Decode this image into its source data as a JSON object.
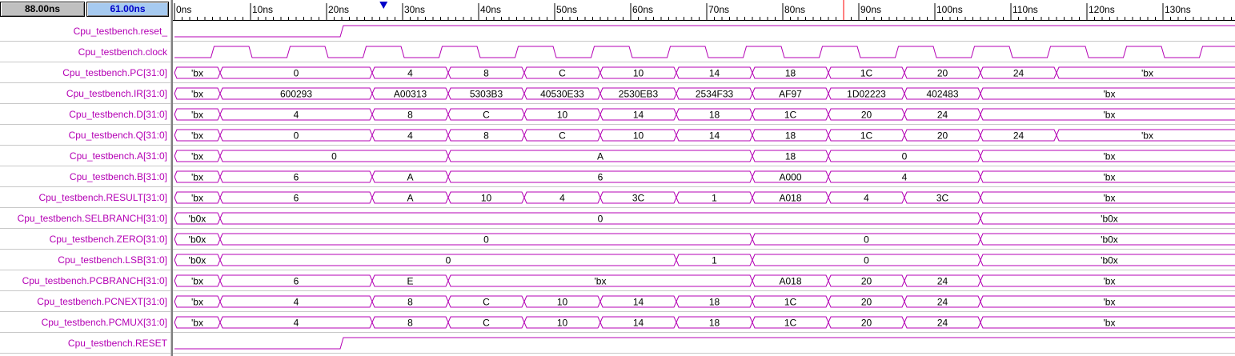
{
  "timebar": {
    "time_a": "88.00ns",
    "time_b": "61.00ns"
  },
  "ruler": {
    "labels": [
      "0ns",
      "10ns",
      "20ns",
      "30ns",
      "40ns",
      "50ns",
      "60ns",
      "70ns",
      "80ns",
      "90ns",
      "100ns",
      "110ns",
      "120ns",
      "130ns"
    ],
    "marker_ns": 27.5,
    "cursor_ns": 88
  },
  "colors": {
    "signal": "#b400b4",
    "ruler": "#000000",
    "marker": "#0000c8",
    "cursor": "#ff0000",
    "time_a_bg": "#c0c0c0",
    "time_b_bg": "#a6caf0"
  },
  "signals": [
    {
      "name": "Cpu_testbench.reset_",
      "kind": "bit",
      "edges": [
        [
          0,
          0
        ],
        [
          22,
          1
        ]
      ]
    },
    {
      "name": "Cpu_testbench.clock",
      "kind": "clock",
      "period": 10,
      "first_rise": 5
    },
    {
      "name": "Cpu_testbench.PC[31:0]",
      "kind": "bus",
      "segments": [
        [
          0,
          6,
          "'bx"
        ],
        [
          6,
          26,
          "0"
        ],
        [
          26,
          36,
          "4"
        ],
        [
          36,
          46,
          "8"
        ],
        [
          46,
          56,
          "C"
        ],
        [
          56,
          66,
          "10"
        ],
        [
          66,
          76,
          "14"
        ],
        [
          76,
          86,
          "18"
        ],
        [
          86,
          96,
          "1C"
        ],
        [
          96,
          106,
          "20"
        ],
        [
          106,
          116,
          "24"
        ],
        [
          116,
          140,
          "'bx"
        ]
      ]
    },
    {
      "name": "Cpu_testbench.IR[31:0]",
      "kind": "bus",
      "segments": [
        [
          0,
          6,
          "'bx"
        ],
        [
          6,
          26,
          "600293"
        ],
        [
          26,
          36,
          "A00313"
        ],
        [
          36,
          46,
          "5303B3"
        ],
        [
          46,
          56,
          "40530E33"
        ],
        [
          56,
          66,
          "2530EB3"
        ],
        [
          66,
          76,
          "2534F33"
        ],
        [
          76,
          86,
          "AF97"
        ],
        [
          86,
          96,
          "1D02223"
        ],
        [
          96,
          106,
          "402483"
        ],
        [
          106,
          140,
          "'bx"
        ]
      ]
    },
    {
      "name": "Cpu_testbench.D[31:0]",
      "kind": "bus",
      "segments": [
        [
          0,
          6,
          "'bx"
        ],
        [
          6,
          26,
          "4"
        ],
        [
          26,
          36,
          "8"
        ],
        [
          36,
          46,
          "C"
        ],
        [
          46,
          56,
          "10"
        ],
        [
          56,
          66,
          "14"
        ],
        [
          66,
          76,
          "18"
        ],
        [
          76,
          86,
          "1C"
        ],
        [
          86,
          96,
          "20"
        ],
        [
          96,
          106,
          "24"
        ],
        [
          106,
          140,
          "'bx"
        ]
      ]
    },
    {
      "name": "Cpu_testbench.Q[31:0]",
      "kind": "bus",
      "segments": [
        [
          0,
          6,
          "'bx"
        ],
        [
          6,
          26,
          "0"
        ],
        [
          26,
          36,
          "4"
        ],
        [
          36,
          46,
          "8"
        ],
        [
          46,
          56,
          "C"
        ],
        [
          56,
          66,
          "10"
        ],
        [
          66,
          76,
          "14"
        ],
        [
          76,
          86,
          "18"
        ],
        [
          86,
          96,
          "1C"
        ],
        [
          96,
          106,
          "20"
        ],
        [
          106,
          116,
          "24"
        ],
        [
          116,
          140,
          "'bx"
        ]
      ]
    },
    {
      "name": "Cpu_testbench.A[31:0]",
      "kind": "bus",
      "segments": [
        [
          0,
          6,
          "'bx"
        ],
        [
          6,
          36,
          "0"
        ],
        [
          36,
          76,
          "A"
        ],
        [
          76,
          86,
          "18"
        ],
        [
          86,
          106,
          "0"
        ],
        [
          106,
          140,
          "'bx"
        ]
      ]
    },
    {
      "name": "Cpu_testbench.B[31:0]",
      "kind": "bus",
      "segments": [
        [
          0,
          6,
          "'bx"
        ],
        [
          6,
          26,
          "6"
        ],
        [
          26,
          36,
          "A"
        ],
        [
          36,
          76,
          "6"
        ],
        [
          76,
          86,
          "A000"
        ],
        [
          86,
          106,
          "4"
        ],
        [
          106,
          140,
          "'bx"
        ]
      ]
    },
    {
      "name": "Cpu_testbench.RESULT[31:0]",
      "kind": "bus",
      "segments": [
        [
          0,
          6,
          "'bx"
        ],
        [
          6,
          26,
          "6"
        ],
        [
          26,
          36,
          "A"
        ],
        [
          36,
          46,
          "10"
        ],
        [
          46,
          56,
          "4"
        ],
        [
          56,
          66,
          "3C"
        ],
        [
          66,
          76,
          "1"
        ],
        [
          76,
          86,
          "A018"
        ],
        [
          86,
          96,
          "4"
        ],
        [
          96,
          106,
          "3C"
        ],
        [
          106,
          140,
          "'bx"
        ]
      ]
    },
    {
      "name": "Cpu_testbench.SELBRANCH[31:0]",
      "kind": "bus",
      "segments": [
        [
          0,
          6,
          "'b0x"
        ],
        [
          6,
          106,
          "0"
        ],
        [
          106,
          140,
          "'b0x"
        ]
      ]
    },
    {
      "name": "Cpu_testbench.ZERO[31:0]",
      "kind": "bus",
      "segments": [
        [
          0,
          6,
          "'b0x"
        ],
        [
          6,
          76,
          "0"
        ],
        [
          76,
          106,
          "0"
        ],
        [
          106,
          140,
          "'b0x"
        ]
      ]
    },
    {
      "name": "Cpu_testbench.LSB[31:0]",
      "kind": "bus",
      "segments": [
        [
          0,
          6,
          "'b0x"
        ],
        [
          6,
          66,
          "0"
        ],
        [
          66,
          76,
          "1"
        ],
        [
          76,
          106,
          "0"
        ],
        [
          106,
          140,
          "'b0x"
        ]
      ]
    },
    {
      "name": "Cpu_testbench.PCBRANCH[31:0]",
      "kind": "bus",
      "segments": [
        [
          0,
          6,
          "'bx"
        ],
        [
          6,
          26,
          "6"
        ],
        [
          26,
          36,
          "E"
        ],
        [
          36,
          76,
          "'bx"
        ],
        [
          76,
          86,
          "A018"
        ],
        [
          86,
          96,
          "20"
        ],
        [
          96,
          106,
          "24"
        ],
        [
          106,
          140,
          "'bx"
        ]
      ]
    },
    {
      "name": "Cpu_testbench.PCNEXT[31:0]",
      "kind": "bus",
      "segments": [
        [
          0,
          6,
          "'bx"
        ],
        [
          6,
          26,
          "4"
        ],
        [
          26,
          36,
          "8"
        ],
        [
          36,
          46,
          "C"
        ],
        [
          46,
          56,
          "10"
        ],
        [
          56,
          66,
          "14"
        ],
        [
          66,
          76,
          "18"
        ],
        [
          76,
          86,
          "1C"
        ],
        [
          86,
          96,
          "20"
        ],
        [
          96,
          106,
          "24"
        ],
        [
          106,
          140,
          "'bx"
        ]
      ]
    },
    {
      "name": "Cpu_testbench.PCMUX[31:0]",
      "kind": "bus",
      "segments": [
        [
          0,
          6,
          "'bx"
        ],
        [
          6,
          26,
          "4"
        ],
        [
          26,
          36,
          "8"
        ],
        [
          36,
          46,
          "C"
        ],
        [
          46,
          56,
          "10"
        ],
        [
          56,
          66,
          "14"
        ],
        [
          66,
          76,
          "18"
        ],
        [
          76,
          86,
          "1C"
        ],
        [
          86,
          96,
          "20"
        ],
        [
          96,
          106,
          "24"
        ],
        [
          106,
          140,
          "'bx"
        ]
      ]
    },
    {
      "name": "Cpu_testbench.RESET",
      "kind": "bit",
      "edges": [
        [
          0,
          0
        ],
        [
          22,
          1
        ]
      ]
    }
  ]
}
